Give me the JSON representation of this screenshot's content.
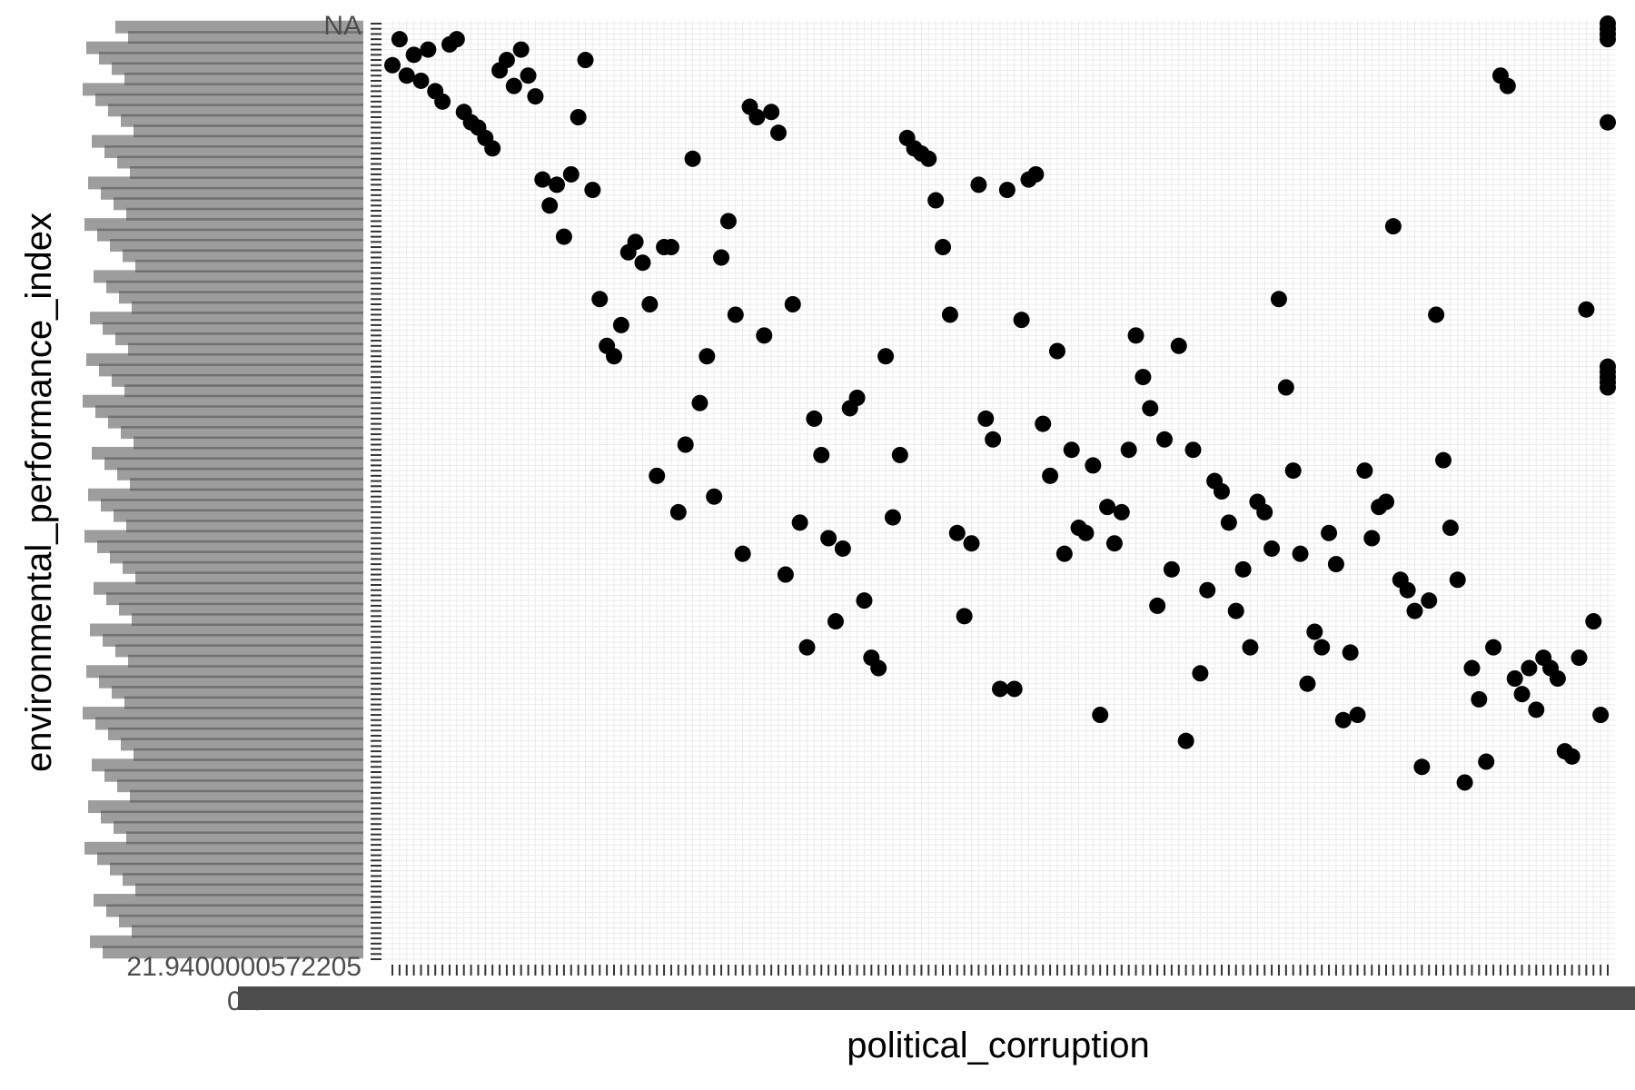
{
  "chart_data": {
    "type": "scatter",
    "xlabel": "political_corruption",
    "ylabel": "environmental_performance_index",
    "y_top_tick_label": "NA",
    "y_bottom_tick_label": "21.9400000572205",
    "x_first_tick_label": "0.0",
    "grid": true,
    "legend": "none",
    "note": "Both axes are treated as discrete (categorical) in the original, producing ~180 overlapping tick labels; values are recorded as ordinal positions from the lowest category (0 = lowest) and the NA category sits at the top of the y axis.",
    "x_category_count": 171,
    "y_category_count": 181,
    "points": [
      [
        1,
        177
      ],
      [
        3,
        174
      ],
      [
        5,
        175
      ],
      [
        8,
        176
      ],
      [
        9,
        177
      ],
      [
        0,
        172
      ],
      [
        2,
        170
      ],
      [
        4,
        169
      ],
      [
        6,
        167
      ],
      [
        7,
        165
      ],
      [
        10,
        163
      ],
      [
        11,
        161
      ],
      [
        12,
        160
      ],
      [
        13,
        158
      ],
      [
        14,
        156
      ],
      [
        15,
        171
      ],
      [
        16,
        173
      ],
      [
        17,
        168
      ],
      [
        18,
        175
      ],
      [
        19,
        170
      ],
      [
        20,
        166
      ],
      [
        21,
        150
      ],
      [
        22,
        145
      ],
      [
        23,
        149
      ],
      [
        24,
        139
      ],
      [
        25,
        151
      ],
      [
        26,
        162
      ],
      [
        27,
        173
      ],
      [
        28,
        148
      ],
      [
        29,
        127
      ],
      [
        30,
        118
      ],
      [
        31,
        116
      ],
      [
        32,
        122
      ],
      [
        33,
        136
      ],
      [
        34,
        138
      ],
      [
        35,
        134
      ],
      [
        36,
        126
      ],
      [
        37,
        93
      ],
      [
        38,
        137
      ],
      [
        39,
        137
      ],
      [
        40,
        86
      ],
      [
        41,
        99
      ],
      [
        42,
        154
      ],
      [
        43,
        107
      ],
      [
        44,
        116
      ],
      [
        45,
        89
      ],
      [
        46,
        135
      ],
      [
        47,
        142
      ],
      [
        48,
        124
      ],
      [
        49,
        78
      ],
      [
        50,
        164
      ],
      [
        51,
        162
      ],
      [
        52,
        120
      ],
      [
        53,
        163
      ],
      [
        54,
        159
      ],
      [
        55,
        74
      ],
      [
        56,
        126
      ],
      [
        57,
        84
      ],
      [
        58,
        60
      ],
      [
        59,
        104
      ],
      [
        60,
        97
      ],
      [
        61,
        81
      ],
      [
        62,
        65
      ],
      [
        63,
        79
      ],
      [
        64,
        106
      ],
      [
        65,
        108
      ],
      [
        66,
        69
      ],
      [
        67,
        58
      ],
      [
        68,
        56
      ],
      [
        69,
        116
      ],
      [
        70,
        85
      ],
      [
        71,
        97
      ],
      [
        72,
        158
      ],
      [
        73,
        156
      ],
      [
        74,
        155
      ],
      [
        75,
        154
      ],
      [
        76,
        146
      ],
      [
        77,
        137
      ],
      [
        78,
        124
      ],
      [
        79,
        82
      ],
      [
        80,
        66
      ],
      [
        81,
        80
      ],
      [
        82,
        149
      ],
      [
        83,
        104
      ],
      [
        84,
        100
      ],
      [
        85,
        52
      ],
      [
        86,
        148
      ],
      [
        87,
        52
      ],
      [
        88,
        123
      ],
      [
        89,
        150
      ],
      [
        90,
        151
      ],
      [
        91,
        103
      ],
      [
        92,
        93
      ],
      [
        93,
        117
      ],
      [
        94,
        78
      ],
      [
        95,
        98
      ],
      [
        96,
        83
      ],
      [
        97,
        82
      ],
      [
        98,
        95
      ],
      [
        99,
        47
      ],
      [
        100,
        87
      ],
      [
        101,
        80
      ],
      [
        102,
        86
      ],
      [
        103,
        98
      ],
      [
        104,
        120
      ],
      [
        105,
        112
      ],
      [
        106,
        106
      ],
      [
        107,
        68
      ],
      [
        108,
        100
      ],
      [
        109,
        75
      ],
      [
        110,
        118
      ],
      [
        111,
        42
      ],
      [
        112,
        98
      ],
      [
        113,
        55
      ],
      [
        114,
        71
      ],
      [
        115,
        92
      ],
      [
        116,
        90
      ],
      [
        117,
        84
      ],
      [
        118,
        67
      ],
      [
        119,
        75
      ],
      [
        120,
        60
      ],
      [
        121,
        88
      ],
      [
        122,
        86
      ],
      [
        123,
        79
      ],
      [
        124,
        127
      ],
      [
        125,
        110
      ],
      [
        126,
        94
      ],
      [
        127,
        78
      ],
      [
        128,
        53
      ],
      [
        129,
        63
      ],
      [
        130,
        60
      ],
      [
        131,
        82
      ],
      [
        132,
        76
      ],
      [
        133,
        46
      ],
      [
        134,
        59
      ],
      [
        135,
        47
      ],
      [
        136,
        94
      ],
      [
        137,
        81
      ],
      [
        138,
        87
      ],
      [
        139,
        88
      ],
      [
        140,
        141
      ],
      [
        141,
        73
      ],
      [
        142,
        71
      ],
      [
        143,
        67
      ],
      [
        144,
        37
      ],
      [
        145,
        69
      ],
      [
        146,
        124
      ],
      [
        147,
        96
      ],
      [
        148,
        83
      ],
      [
        149,
        73
      ],
      [
        150,
        34
      ],
      [
        151,
        56
      ],
      [
        152,
        50
      ],
      [
        153,
        38
      ],
      [
        154,
        60
      ],
      [
        155,
        170
      ],
      [
        156,
        168
      ],
      [
        157,
        54
      ],
      [
        158,
        51
      ],
      [
        159,
        56
      ],
      [
        160,
        48
      ],
      [
        161,
        58
      ],
      [
        162,
        56
      ],
      [
        163,
        54
      ],
      [
        164,
        40
      ],
      [
        165,
        39
      ],
      [
        166,
        58
      ],
      [
        167,
        125
      ],
      [
        168,
        65
      ],
      [
        169,
        47
      ],
      [
        170,
        110
      ],
      [
        170,
        111
      ],
      [
        170,
        112
      ],
      [
        170,
        113
      ],
      [
        170,
        114
      ],
      [
        170,
        161
      ],
      [
        170,
        177
      ],
      [
        170,
        178
      ],
      [
        170,
        179
      ],
      [
        170,
        180
      ]
    ]
  }
}
